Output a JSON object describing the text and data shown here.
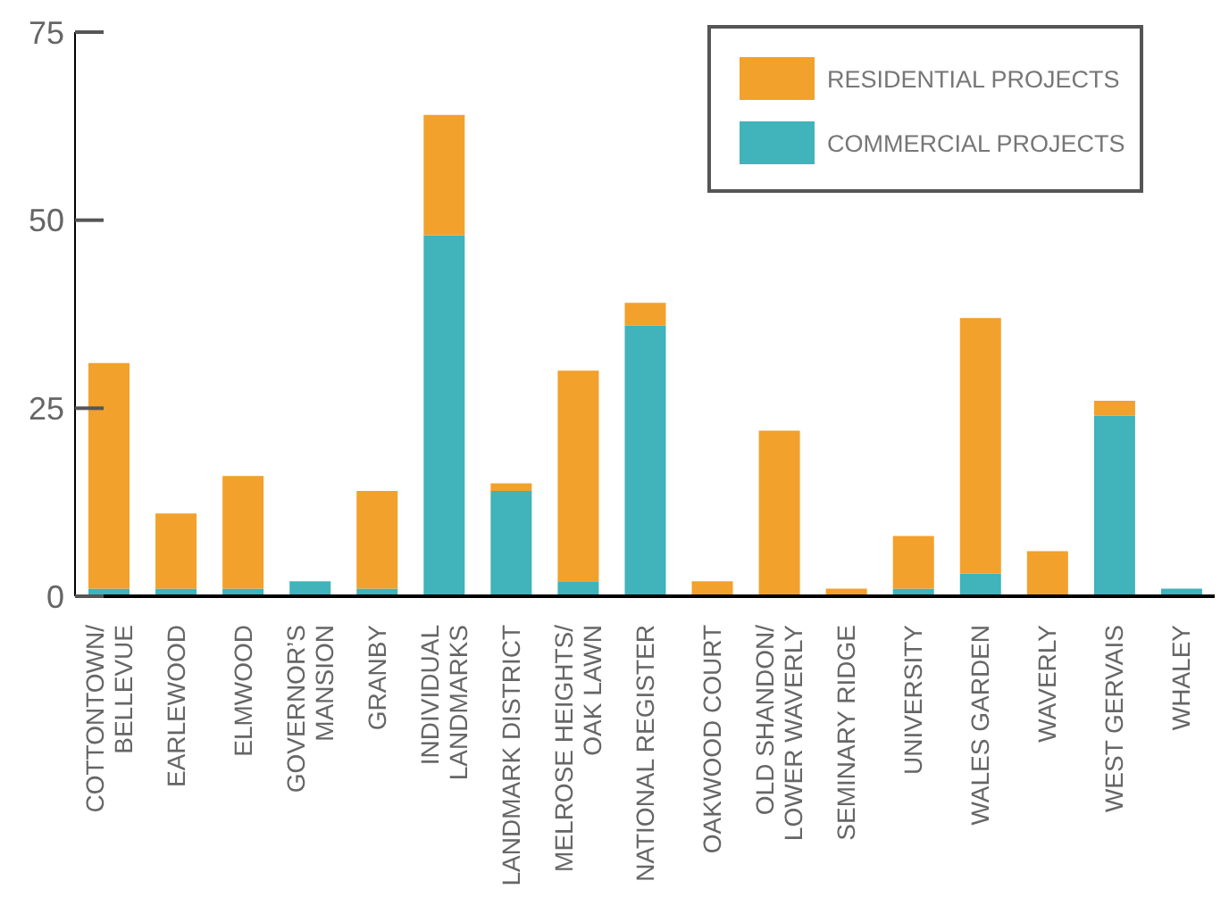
{
  "chart_data": {
    "type": "bar",
    "stacked": true,
    "categories": [
      "COTTONTOWN/\nBELLEVUE",
      "EARLEWOOD",
      "ELMWOOD",
      "GOVERNOR’S\nMANSION",
      "GRANBY",
      "INDIVIDUAL\nLANDMARKS",
      "LANDMARK DISTRICT",
      "MELROSE HEIGHTS/\nOAK LAWN",
      "NATIONAL REGISTER",
      "OAKWOOD COURT",
      "OLD SHANDON/\nLOWER WAVERLY",
      "SEMINARY RIDGE",
      "UNIVERSITY",
      "WALES GARDEN",
      "WAVERLY",
      "WEST GERVAIS",
      "WHALEY"
    ],
    "series": [
      {
        "name": "COMMERCIAL PROJECTS",
        "color": "#40b3bb",
        "values": [
          1,
          1,
          1,
          2,
          1,
          48,
          14,
          2,
          36,
          0,
          0,
          0,
          1,
          3,
          0,
          24,
          1
        ]
      },
      {
        "name": "RESIDENTIAL PROJECTS",
        "color": "#f2a12c",
        "values": [
          30,
          10,
          15,
          0,
          13,
          16,
          1,
          28,
          3,
          2,
          22,
          1,
          7,
          34,
          6,
          2,
          0
        ]
      }
    ],
    "ylim": [
      0,
      75
    ],
    "yticks": [
      0,
      25,
      50,
      75
    ],
    "grid": false,
    "legend": "top right"
  }
}
